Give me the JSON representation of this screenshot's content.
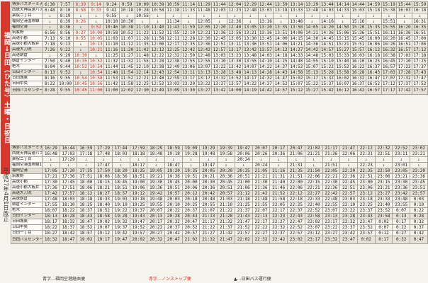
{
  "title": "福岡→日田（ひた号）土曜・日祝日",
  "revision": "平成27年4月1日改正",
  "legend": [
    {
      "text": "青字…福岡空港経由便",
      "color": "#333333"
    },
    {
      "text": "赤字…ノンストップ便",
      "color": "#d5281f"
    },
    {
      "text": "▲…日田バス運行便",
      "color": "#333333"
    }
  ],
  "stops": [
    "博多バスターミナル",
    "西鉄天神高速バスターミナル",
    "薬院二丁目",
    "福岡空港国際線",
    "福岡空港",
    "筑紫野",
    "高速小郡",
    "高速小郡大板井",
    "高速大刀洗",
    "高速朝倉",
    "朝倉インター",
    "杷木",
    "日田インター",
    "日田城東",
    "日田中央",
    "日田バスセンター（日田駅前入口）"
  ],
  "stops2": [
    "博多バスターミナル",
    "西鉄天神高速バスターミナル",
    "薬院二丁目",
    "福岡空港国際線1・2",
    "福岡空港",
    "筑紫野",
    "高速小郡",
    "高速小郡大板井",
    "高速大刀洗",
    "高速朝倉",
    "朝倉インター",
    "杷木",
    "日田インター",
    "日田城東",
    "日田中央",
    "日田一丁目",
    "日田バスセンター（日田駅前入口）"
  ],
  "table1": {
    "columns": [
      [
        "6:30",
        "6:48",
        "↓",
        "↓",
        "↓",
        "6:56",
        "7:13",
        "7:18",
        "7:26",
        "↓",
        "7:50",
        "8:04",
        "8:13",
        "8:16",
        "8:22",
        "8:28"
      ],
      [
        "7:57",
        "8:10",
        "8:19",
        "8:39",
        "8:36",
        "8:56",
        "9:10",
        "9:13",
        "9:22",
        "9:29",
        "9:40",
        "9:44",
        "9:52",
        "9:55",
        "10:00",
        "9:55"
      ],
      [
        "8:39",
        "8:58",
        "↓",
        "9:26",
        "↓",
        "9:27",
        "9:55",
        "↓",
        "↓",
        "10:30",
        "10:35",
        "10:52",
        "↓",
        "10:54",
        "10:45",
        "10:45"
      ],
      [
        "9:14",
        "9:33",
        "↓",
        "↓",
        "9:52",
        "10:00",
        "10:05",
        "10:13",
        "10:21",
        "↓",
        "10:52",
        "10:54",
        "10:54",
        "10:58",
        "10:56",
        "11:00"
      ],
      [
        "9:24",
        "9:42",
        "9:55",
        "10:10",
        "10:46",
        "10:58",
        "11:03",
        "11:10",
        "11:16",
        "11:25",
        "11:32",
        "11:44",
        "11:48",
        "11:53",
        "11:42",
        "11:00"
      ],
      [
        "9:59",
        "10:18",
        "↓",
        "10:30",
        "10:38",
        "10:52",
        "11:07",
        "11:12",
        "11:20",
        "11:27",
        "11:32",
        "11:45",
        "11:54",
        "11:52",
        "11:58",
        "12:02"
      ],
      [
        "10:09",
        "10:28",
        "10:55",
        "↓",
        "11:10",
        "11:22",
        "11:28",
        "11:35",
        "11:42",
        "11:48",
        "11:55",
        "12:10",
        "12:14",
        "12:21",
        "12:25",
        "12:30"
      ],
      [
        "10:39",
        "10:58",
        "↓",
        "↓",
        "11:40",
        "11:52",
        "11:58",
        "12:06",
        "12:12",
        "12:22",
        "12:28",
        "12:38",
        "12:43",
        "12:48",
        "12:52",
        "12:49"
      ],
      [
        "10:59",
        "11:18",
        "↓",
        "11:34",
        "11:43",
        "11:55",
        "12:11",
        "12:17",
        "12:25",
        "12:32",
        "12:38",
        "12:49",
        "12:54",
        "12:59",
        "13:03",
        "13:09"
      ],
      [
        "11:14",
        "11:33",
        "↓",
        "↓",
        "11:59",
        "12:10",
        "12:28",
        "12:35",
        "12:42",
        "12:50",
        "12:55",
        "13:06",
        "13:11",
        "13:17",
        "13:20",
        "13:30"
      ],
      [
        "11:29",
        "11:48",
        "↓",
        "12:05",
        "12:05",
        "12:21",
        "12:30",
        "12:36",
        "12:42",
        "12:48",
        "12:55",
        "13:07",
        "13:13",
        "13:17",
        "13:22",
        "13:27"
      ],
      [
        "11:44",
        "12:03",
        "↓",
        "↓",
        "12:20",
        "12:36",
        "12:45",
        "12:51",
        "12:57",
        "13:03",
        "13:10",
        "13:22",
        "13:28",
        "13:32",
        "13:37",
        "13:42"
      ],
      [
        "12:04",
        "12:23",
        "↓",
        "12:36",
        "12:40",
        "12:56",
        "13:05",
        "13:11",
        "13:17",
        "13:23",
        "13:30",
        "13:42",
        "13:48",
        "13:52",
        "13:57",
        "14:00"
      ],
      [
        "12:29",
        "12:48",
        "↓",
        "↓",
        "13:05",
        "13:21",
        "13:30",
        "13:36",
        "13:42",
        "13:48",
        "13:55",
        "14:07",
        "14:13",
        "14:17",
        "14:22",
        "14:19"
      ],
      [
        "12:44",
        "13:03",
        "↓",
        "13:16",
        "13:20",
        "13:36",
        "13:45",
        "13:51",
        "13:57",
        "14:03",
        "14:10",
        "14:22",
        "14:28",
        "14:32",
        "14:37",
        "14:42"
      ],
      [
        "12:59",
        "13:18",
        "↓",
        "↓",
        "13:35",
        "13:51",
        "14:00",
        "14:06",
        "14:12",
        "14:18",
        "14:25",
        "14:37",
        "14:43",
        "14:47",
        "14:52",
        "14:57"
      ],
      [
        "13:14",
        "13:33",
        "↓",
        "13:46",
        "13:50",
        "14:06",
        "14:15",
        "14:21",
        "14:27",
        "14:33",
        "14:40",
        "14:52",
        "14:58",
        "15:02",
        "15:07",
        "15:12"
      ],
      [
        "13:29",
        "13:48",
        "↓",
        "↓",
        "14:05",
        "14:21",
        "14:30",
        "14:36",
        "14:42",
        "14:48",
        "14:55",
        "15:07",
        "15:13",
        "15:17",
        "15:22",
        "15:27"
      ],
      [
        "13:44",
        "14:03",
        "↓",
        "14:16",
        "14:20",
        "14:36",
        "14:45",
        "14:51",
        "14:57",
        "15:03",
        "15:10",
        "15:22",
        "15:28",
        "15:32",
        "15:37",
        "15:42"
      ],
      [
        "14:14",
        "14:33",
        "↓",
        "↓",
        "14:50",
        "15:06",
        "15:15",
        "15:21",
        "15:27",
        "15:33",
        "15:40",
        "15:52",
        "15:58",
        "16:02",
        "16:07",
        "16:12"
      ],
      [
        "14:44",
        "15:03",
        "↓",
        "15:16",
        "15:20",
        "15:36",
        "15:45",
        "15:51",
        "15:57",
        "16:03",
        "16:10",
        "16:22",
        "16:28",
        "16:32",
        "16:37",
        "16:42"
      ],
      [
        "14:59",
        "15:18",
        "↓",
        "↓",
        "15:35",
        "15:51",
        "16:00",
        "16:06",
        "16:12",
        "16:18",
        "16:25",
        "16:37",
        "16:43",
        "16:47",
        "16:52",
        "16:57"
      ],
      [
        "15:19",
        "15:38",
        "↓",
        "15:51",
        "15:55",
        "16:11",
        "16:20",
        "16:26",
        "16:32",
        "16:38",
        "16:45",
        "16:57",
        "17:03",
        "17:07",
        "17:12",
        "17:17"
      ],
      [
        "15:44",
        "16:03",
        "↓",
        "↓",
        "16:20",
        "16:36",
        "16:45",
        "16:51",
        "16:57",
        "17:03",
        "17:10",
        "17:22",
        "17:28",
        "17:32",
        "17:37",
        "17:42"
      ],
      [
        "15:59",
        "16:18",
        "↓",
        "16:31",
        "16:35",
        "16:51",
        "17:00",
        "17:06",
        "17:12",
        "17:18",
        "17:25",
        "17:37",
        "17:43",
        "17:47",
        "17:52",
        "17:57"
      ]
    ],
    "red_columns": [
      2,
      3
    ]
  },
  "table2": {
    "columns": [
      [
        "16:29",
        "16:48",
        "↓",
        "↓",
        "17:05",
        "17:21",
        "17:30",
        "17:36",
        "17:42",
        "17:48",
        "17:55",
        "18:07",
        "18:13",
        "18:17",
        "18:22",
        "18:27",
        "18:32"
      ],
      [
        "16:44",
        "17:03",
        "17:29",
        "↓",
        "17:20",
        "17:36",
        "17:45",
        "17:51",
        "17:57",
        "18:03",
        "18:10",
        "18:22",
        "18:28",
        "18:32",
        "18:37",
        "18:42",
        "18:47"
      ],
      [
        "16:59",
        "17:18",
        "↓",
        "↓",
        "17:35",
        "17:51",
        "18:00",
        "18:06",
        "18:12",
        "18:18",
        "18:25",
        "18:37",
        "18:43",
        "18:47",
        "18:52",
        "18:57",
        "19:02"
      ],
      [
        "17:29",
        "17:48",
        "↓",
        "17:47",
        "17:50",
        "18:06",
        "18:15",
        "18:21",
        "18:27",
        "18:33",
        "18:40",
        "18:52",
        "18:58",
        "19:02",
        "19:07",
        "19:12",
        "19:17"
      ],
      [
        "17:44",
        "18:03",
        "↓",
        "↓",
        "18:20",
        "18:36",
        "18:45",
        "18:51",
        "18:57",
        "19:03",
        "19:10",
        "19:22",
        "19:28",
        "19:32",
        "19:37",
        "19:42",
        "19:47"
      ],
      [
        "17:59",
        "18:18",
        "↓",
        "18:17",
        "18:35",
        "18:51",
        "19:00",
        "19:06",
        "19:12",
        "19:18",
        "19:25",
        "19:37",
        "19:43",
        "19:47",
        "19:52",
        "19:57",
        "20:02"
      ],
      [
        "18:29",
        "18:48",
        "↓",
        "↓",
        "19:05",
        "19:21",
        "19:30",
        "19:36",
        "19:42",
        "19:48",
        "19:55",
        "20:07",
        "20:13",
        "20:17",
        "20:22",
        "20:27",
        "20:32"
      ],
      [
        "18:59",
        "19:18",
        "↓",
        "18:47",
        "19:20",
        "19:36",
        "19:45",
        "19:51",
        "19:57",
        "20:03",
        "20:10",
        "20:22",
        "20:28",
        "20:32",
        "20:37",
        "20:42",
        "20:47"
      ],
      [
        "19:09",
        "19:28",
        "↓",
        "↓",
        "19:35",
        "19:51",
        "20:00",
        "20:06",
        "20:12",
        "20:18",
        "20:25",
        "20:37",
        "20:43",
        "20:47",
        "20:52",
        "20:57",
        "21:02"
      ],
      [
        "19:29",
        "19:48",
        "↓",
        "19:47",
        "20:05",
        "20:21",
        "20:30",
        "20:36",
        "20:42",
        "20:48",
        "20:55",
        "21:07",
        "21:13",
        "21:17",
        "21:22",
        "21:27",
        "21:32"
      ],
      [
        "19:39",
        "19:58",
        "↓",
        "↓",
        "20:20",
        "20:36",
        "20:45",
        "20:51",
        "20:57",
        "21:03",
        "21:10",
        "21:22",
        "21:28",
        "21:32",
        "21:37",
        "21:42",
        "21:47"
      ],
      [
        "19:47",
        "20:06",
        "20:24",
        "↓",
        "20:35",
        "20:51",
        "21:00",
        "21:06",
        "21:12",
        "21:18",
        "21:25",
        "21:37",
        "21:43",
        "21:47",
        "21:52",
        "21:57",
        "22:02"
      ],
      [
        "20:07",
        "20:26",
        "↓",
        "20:24",
        "21:05",
        "21:21",
        "21:30",
        "21:36",
        "21:42",
        "21:48",
        "21:55",
        "22:07",
        "22:13",
        "22:17",
        "22:22",
        "22:27",
        "22:32"
      ],
      [
        "20:17",
        "20:36",
        "↓",
        "↓",
        "21:16",
        "21:31",
        "21:40",
        "21:46",
        "21:52",
        "21:58",
        "22:05",
        "22:17",
        "22:23",
        "22:27",
        "22:32",
        "22:37",
        "22:42"
      ],
      [
        "20:47",
        "21:06",
        "↓",
        "21:31",
        "21:35",
        "21:51",
        "22:00",
        "22:06",
        "22:12",
        "22:18",
        "22:25",
        "22:37",
        "22:43",
        "22:47",
        "22:52",
        "22:57",
        "23:02"
      ],
      [
        "21:02",
        "21:21",
        "↓",
        "↓",
        "21:50",
        "22:06",
        "22:15",
        "22:21",
        "22:27",
        "22:33",
        "22:40",
        "22:52",
        "22:58",
        "23:02",
        "23:07",
        "23:12",
        "23:17"
      ],
      [
        "21:17",
        "21:36",
        "↓",
        "21:51",
        "22:05",
        "22:21",
        "22:30",
        "22:36",
        "22:42",
        "22:48",
        "22:55",
        "23:07",
        "23:13",
        "23:17",
        "23:22",
        "23:27",
        "23:32"
      ],
      [
        "21:47",
        "22:06",
        "↓",
        "↓",
        "22:20",
        "22:36",
        "22:45",
        "22:51",
        "22:57",
        "23:03",
        "23:10",
        "23:22",
        "23:28",
        "23:32",
        "23:37",
        "23:42",
        "23:47"
      ],
      [
        "22:12",
        "22:31",
        "↓",
        "22:23",
        "22:35",
        "22:51",
        "23:00",
        "23:06",
        "23:12",
        "23:18",
        "23:25",
        "23:37",
        "23:43",
        "23:47",
        "23:52",
        "23:57",
        "0:02"
      ],
      [
        "22:32",
        "22:51",
        "↓",
        "↓",
        "22:50",
        "23:06",
        "23:15",
        "23:21",
        "23:27",
        "23:33",
        "23:40",
        "23:52",
        "23:58",
        "0:02",
        "0:07",
        "0:12",
        "0:17"
      ],
      [
        "22:52",
        "23:11",
        "↓",
        "23:01",
        "23:05",
        "23:21",
        "23:30",
        "23:36",
        "23:42",
        "23:48",
        "23:55",
        "0:07",
        "0:13",
        "0:17",
        "0:22",
        "0:27",
        "0:32"
      ],
      [
        "23:02",
        "23:21",
        "↓",
        "↓",
        "23:20",
        "23:36",
        "23:45",
        "23:51",
        "23:57",
        "0:03",
        "0:10",
        "0:22",
        "0:28",
        "0:32",
        "0:37",
        "0:42",
        "0:47"
      ]
    ],
    "red_columns": []
  }
}
